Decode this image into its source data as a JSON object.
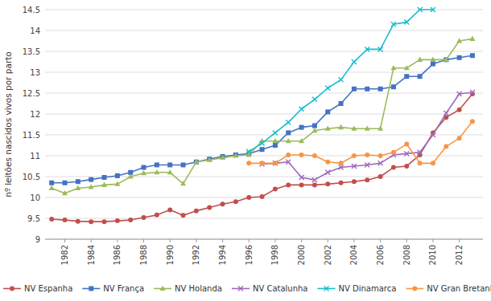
{
  "chart_data": {
    "type": "line",
    "ylabel": "nº leitões nascidos vivos por parto",
    "xlim": [
      1980.5,
      2013.8
    ],
    "xticks": [
      1982,
      1984,
      1986,
      1988,
      1990,
      1992,
      1994,
      1996,
      1998,
      2000,
      2002,
      2004,
      2006,
      2008,
      2010,
      2012
    ],
    "ylim": [
      9.0,
      14.5
    ],
    "yticks": [
      9,
      9.5,
      10,
      10.5,
      11,
      11.5,
      12,
      12.5,
      13,
      13.5,
      14,
      14.5
    ],
    "grid": true,
    "legend": "bottom",
    "series": [
      {
        "name": "NV Espanha",
        "color": "#C0504D",
        "marker": "circle",
        "x": [
          1981,
          1982,
          1983,
          1984,
          1985,
          1986,
          1987,
          1988,
          1989,
          1990,
          1991,
          1992,
          1993,
          1994,
          1995,
          1996,
          1997,
          1998,
          1999,
          2000,
          2001,
          2002,
          2003,
          2004,
          2005,
          2006,
          2007,
          2008,
          2009,
          2010,
          2011,
          2012,
          2013
        ],
        "values": [
          9.48,
          9.46,
          9.43,
          9.42,
          9.42,
          9.44,
          9.46,
          9.52,
          9.58,
          9.7,
          9.57,
          9.68,
          9.76,
          9.84,
          9.9,
          10.0,
          10.02,
          10.2,
          10.3,
          10.3,
          10.3,
          10.32,
          10.35,
          10.38,
          10.42,
          10.5,
          10.72,
          10.75,
          11.02,
          11.55,
          11.92,
          12.1,
          12.48
        ]
      },
      {
        "name": "NV França",
        "color": "#4472C4",
        "marker": "square",
        "x": [
          1981,
          1982,
          1983,
          1984,
          1985,
          1986,
          1987,
          1988,
          1989,
          1990,
          1991,
          1992,
          1993,
          1994,
          1995,
          1996,
          1997,
          1998,
          1999,
          2000,
          2001,
          2002,
          2003,
          2004,
          2005,
          2006,
          2007,
          2008,
          2009,
          2010,
          2011,
          2012,
          2013
        ],
        "values": [
          10.35,
          10.35,
          10.38,
          10.43,
          10.48,
          10.52,
          10.6,
          10.72,
          10.78,
          10.78,
          10.78,
          10.85,
          10.92,
          10.98,
          11.02,
          11.05,
          11.15,
          11.25,
          11.55,
          11.68,
          11.72,
          12.05,
          12.25,
          12.6,
          12.6,
          12.6,
          12.65,
          12.9,
          12.9,
          13.2,
          13.3,
          13.35,
          13.4
        ]
      },
      {
        "name": "NV Holanda",
        "color": "#9BBB59",
        "marker": "triangle",
        "x": [
          1981,
          1982,
          1983,
          1984,
          1985,
          1986,
          1987,
          1988,
          1989,
          1990,
          1991,
          1992,
          1993,
          1994,
          1995,
          1996,
          1997,
          1998,
          1999,
          2000,
          2001,
          2002,
          2003,
          2004,
          2005,
          2006,
          2007,
          2008,
          2009,
          2010,
          2011,
          2012,
          2013
        ],
        "values": [
          10.22,
          10.1,
          10.22,
          10.25,
          10.3,
          10.32,
          10.5,
          10.58,
          10.6,
          10.6,
          10.33,
          10.85,
          10.9,
          10.95,
          11.0,
          11.02,
          11.35,
          11.35,
          11.35,
          11.35,
          11.6,
          11.65,
          11.68,
          11.65,
          11.65,
          11.65,
          13.1,
          13.1,
          13.3,
          13.3,
          13.3,
          13.75,
          13.8
        ]
      },
      {
        "name": "NV Catalunha",
        "color": "#9E6ABE",
        "marker": "x",
        "x": [
          1997,
          1998,
          1999,
          2000,
          2001,
          2002,
          2003,
          2004,
          2005,
          2006,
          2007,
          2008,
          2009,
          2010,
          2011,
          2012,
          2013
        ],
        "values": [
          10.8,
          10.82,
          10.85,
          10.48,
          10.42,
          10.6,
          10.72,
          10.75,
          10.78,
          10.82,
          11.02,
          11.05,
          11.08,
          11.5,
          12.02,
          12.48,
          12.52
        ]
      },
      {
        "name": "NV Dinamarca",
        "color": "#17BECF",
        "marker": "x",
        "x": [
          1996,
          1997,
          1998,
          1999,
          2000,
          2001,
          2002,
          2003,
          2004,
          2005,
          2006,
          2007,
          2008,
          2009,
          2010
        ],
        "values": [
          11.1,
          11.3,
          11.55,
          11.8,
          12.12,
          12.35,
          12.62,
          12.82,
          13.25,
          13.55,
          13.55,
          14.15,
          14.2,
          14.5,
          14.5
        ]
      },
      {
        "name": "NV Gran Bretanha",
        "color": "#F79646",
        "marker": "circle",
        "x": [
          1996,
          1997,
          1998,
          1999,
          2000,
          2001,
          2002,
          2003,
          2004,
          2005,
          2006,
          2007,
          2008,
          2009,
          2010,
          2011,
          2012,
          2013
        ],
        "values": [
          10.82,
          10.82,
          10.82,
          11.02,
          11.02,
          11.0,
          10.85,
          10.82,
          11.0,
          11.02,
          11.0,
          11.08,
          11.28,
          10.82,
          10.82,
          11.22,
          11.42,
          11.82
        ]
      }
    ]
  }
}
